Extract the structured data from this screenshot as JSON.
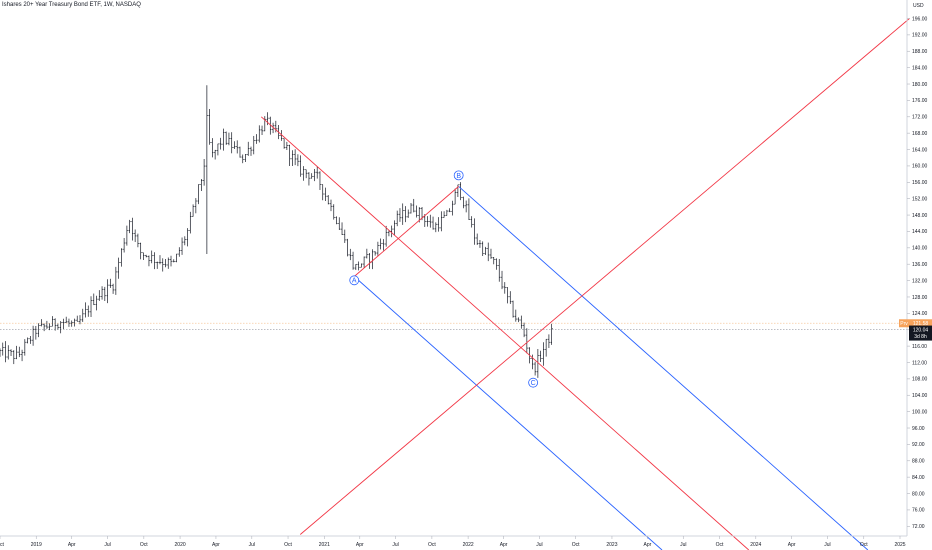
{
  "header": {
    "title": "Ishares 20+ Year Treasury Bond ETF, 1W, NASDAQ"
  },
  "colors": {
    "bars": "#131722",
    "fork_red": "#f23645",
    "fork_blue": "#2962ff",
    "last_price_tag": "#131722",
    "prev_close_tag": "#f7a35c",
    "prev_close_line": "#f7c9a0",
    "last_price_line": "#9598a1"
  },
  "chart_data": {
    "type": "ohlc",
    "interval": "1W",
    "y_axis_unit": "USD",
    "ylim": [
      70,
      198
    ],
    "y_ticks": [
      72,
      76,
      80,
      84,
      88,
      92,
      96,
      100,
      104,
      108,
      112,
      116,
      120,
      124,
      128,
      132,
      136,
      140,
      144,
      148,
      152,
      156,
      160,
      164,
      168,
      172,
      176,
      180,
      184,
      188,
      192,
      196
    ],
    "y_tick_labels": [
      "72.00",
      "76.00",
      "80.00",
      "84.00",
      "88.00",
      "92.00",
      "96.00",
      "100.00",
      "104.00",
      "108.00",
      "112.00",
      "116.00",
      "120.00",
      "124.00",
      "128.00",
      "132.00",
      "136.00",
      "140.00",
      "144.00",
      "148.00",
      "152.00",
      "156.00",
      "160.00",
      "164.00",
      "168.00",
      "172.00",
      "176.00",
      "180.00",
      "184.00",
      "188.00",
      "192.00",
      "196.00"
    ],
    "x_range": [
      "2018-10-01",
      "2025-02-01"
    ],
    "x_ticks": [
      {
        "date": "2018-10-01",
        "label": "ct"
      },
      {
        "date": "2019-01-01",
        "label": "2019"
      },
      {
        "date": "2019-04-01",
        "label": "Apr"
      },
      {
        "date": "2019-07-01",
        "label": "Jul"
      },
      {
        "date": "2019-10-01",
        "label": "Oct"
      },
      {
        "date": "2020-01-01",
        "label": "2020"
      },
      {
        "date": "2020-04-01",
        "label": "Apr"
      },
      {
        "date": "2020-07-01",
        "label": "Jul"
      },
      {
        "date": "2020-10-01",
        "label": "Oct"
      },
      {
        "date": "2021-01-01",
        "label": "2021"
      },
      {
        "date": "2021-04-01",
        "label": "Apr"
      },
      {
        "date": "2021-07-01",
        "label": "Jul"
      },
      {
        "date": "2021-10-01",
        "label": "Oct"
      },
      {
        "date": "2022-01-01",
        "label": "2022"
      },
      {
        "date": "2022-04-01",
        "label": "Apr"
      },
      {
        "date": "2022-07-01",
        "label": "Jul"
      },
      {
        "date": "2022-10-01",
        "label": "Oct"
      },
      {
        "date": "2023-01-01",
        "label": "2023"
      },
      {
        "date": "2023-04-01",
        "label": "Apr"
      },
      {
        "date": "2023-07-01",
        "label": "Jul"
      },
      {
        "date": "2023-10-01",
        "label": "Oct"
      },
      {
        "date": "2024-01-01",
        "label": "2024"
      },
      {
        "date": "2024-04-01",
        "label": "Apr"
      },
      {
        "date": "2024-07-01",
        "label": "Jul"
      },
      {
        "date": "2024-10-01",
        "label": "Oct"
      },
      {
        "date": "2025-01-01",
        "label": "2025"
      }
    ],
    "price_path": [
      {
        "date": "2018-10-01",
        "close": 114.5
      },
      {
        "date": "2018-11-15",
        "close": 113.5
      },
      {
        "date": "2019-01-01",
        "close": 120.0
      },
      {
        "date": "2019-03-01",
        "close": 122.0
      },
      {
        "date": "2019-04-15",
        "close": 121.0
      },
      {
        "date": "2019-06-01",
        "close": 128.0
      },
      {
        "date": "2019-07-15",
        "close": 131.0
      },
      {
        "date": "2019-08-25",
        "close": 147.0
      },
      {
        "date": "2019-09-20",
        "close": 139.0
      },
      {
        "date": "2019-11-01",
        "close": 137.0
      },
      {
        "date": "2019-12-15",
        "close": 136.0
      },
      {
        "date": "2020-01-20",
        "close": 144.0
      },
      {
        "date": "2020-03-01",
        "close": 159.0
      },
      {
        "date": "2020-03-09",
        "close": 171.0
      },
      {
        "date": "2020-03-20",
        "close": 162.0
      },
      {
        "date": "2020-04-20",
        "close": 167.0
      },
      {
        "date": "2020-06-10",
        "close": 162.0
      },
      {
        "date": "2020-08-05",
        "close": 171.0
      },
      {
        "date": "2020-09-15",
        "close": 166.0
      },
      {
        "date": "2020-11-01",
        "close": 159.0
      },
      {
        "date": "2020-12-15",
        "close": 157.0
      },
      {
        "date": "2021-02-01",
        "close": 147.0
      },
      {
        "date": "2021-03-18",
        "close": 135.0
      },
      {
        "date": "2021-05-01",
        "close": 138.0
      },
      {
        "date": "2021-07-05",
        "close": 147.0
      },
      {
        "date": "2021-08-15",
        "close": 150.0
      },
      {
        "date": "2021-10-05",
        "close": 145.0
      },
      {
        "date": "2021-11-10",
        "close": 148.0
      },
      {
        "date": "2021-12-08",
        "close": 155.0
      },
      {
        "date": "2022-01-20",
        "close": 142.0
      },
      {
        "date": "2022-03-10",
        "close": 136.0
      },
      {
        "date": "2022-04-20",
        "close": 125.0
      },
      {
        "date": "2022-05-20",
        "close": 120.0
      },
      {
        "date": "2022-06-15",
        "close": 110.0
      },
      {
        "date": "2022-07-15",
        "close": 116.0
      },
      {
        "date": "2022-08-05",
        "close": 120.04
      }
    ],
    "big_wick": {
      "date": "2020-03-09",
      "high": 179.7,
      "low": 138.5
    },
    "wave_labels": [
      {
        "label": "A",
        "date": "2021-03-18",
        "value": 135.0
      },
      {
        "label": "B",
        "date": "2021-12-08",
        "value": 155.0
      },
      {
        "label": "C",
        "date": "2022-06-15",
        "value": 110.0
      }
    ],
    "pitchfork": {
      "anchors": {
        "handle_start": {
          "date": "2020-07-25",
          "price": 172.0
        },
        "handle_end": {
          "date": "2022-06-15",
          "price": 113.0
        },
        "a": {
          "date": "2021-03-18",
          "price": 133.0
        },
        "b": {
          "date": "2021-12-08",
          "price": 155.0
        }
      },
      "parallel_line": {
        "from": {
          "date": "2020-11-01",
          "price": 70.0
        },
        "to": {
          "date": "2025-01-25",
          "price": 196.0
        }
      }
    },
    "last_price": {
      "value": 120.04,
      "label": "120.04",
      "countdown": "3d 8h"
    },
    "prev_close": {
      "value": 121.58,
      "label": "121.58",
      "tag": "Prv"
    }
  }
}
